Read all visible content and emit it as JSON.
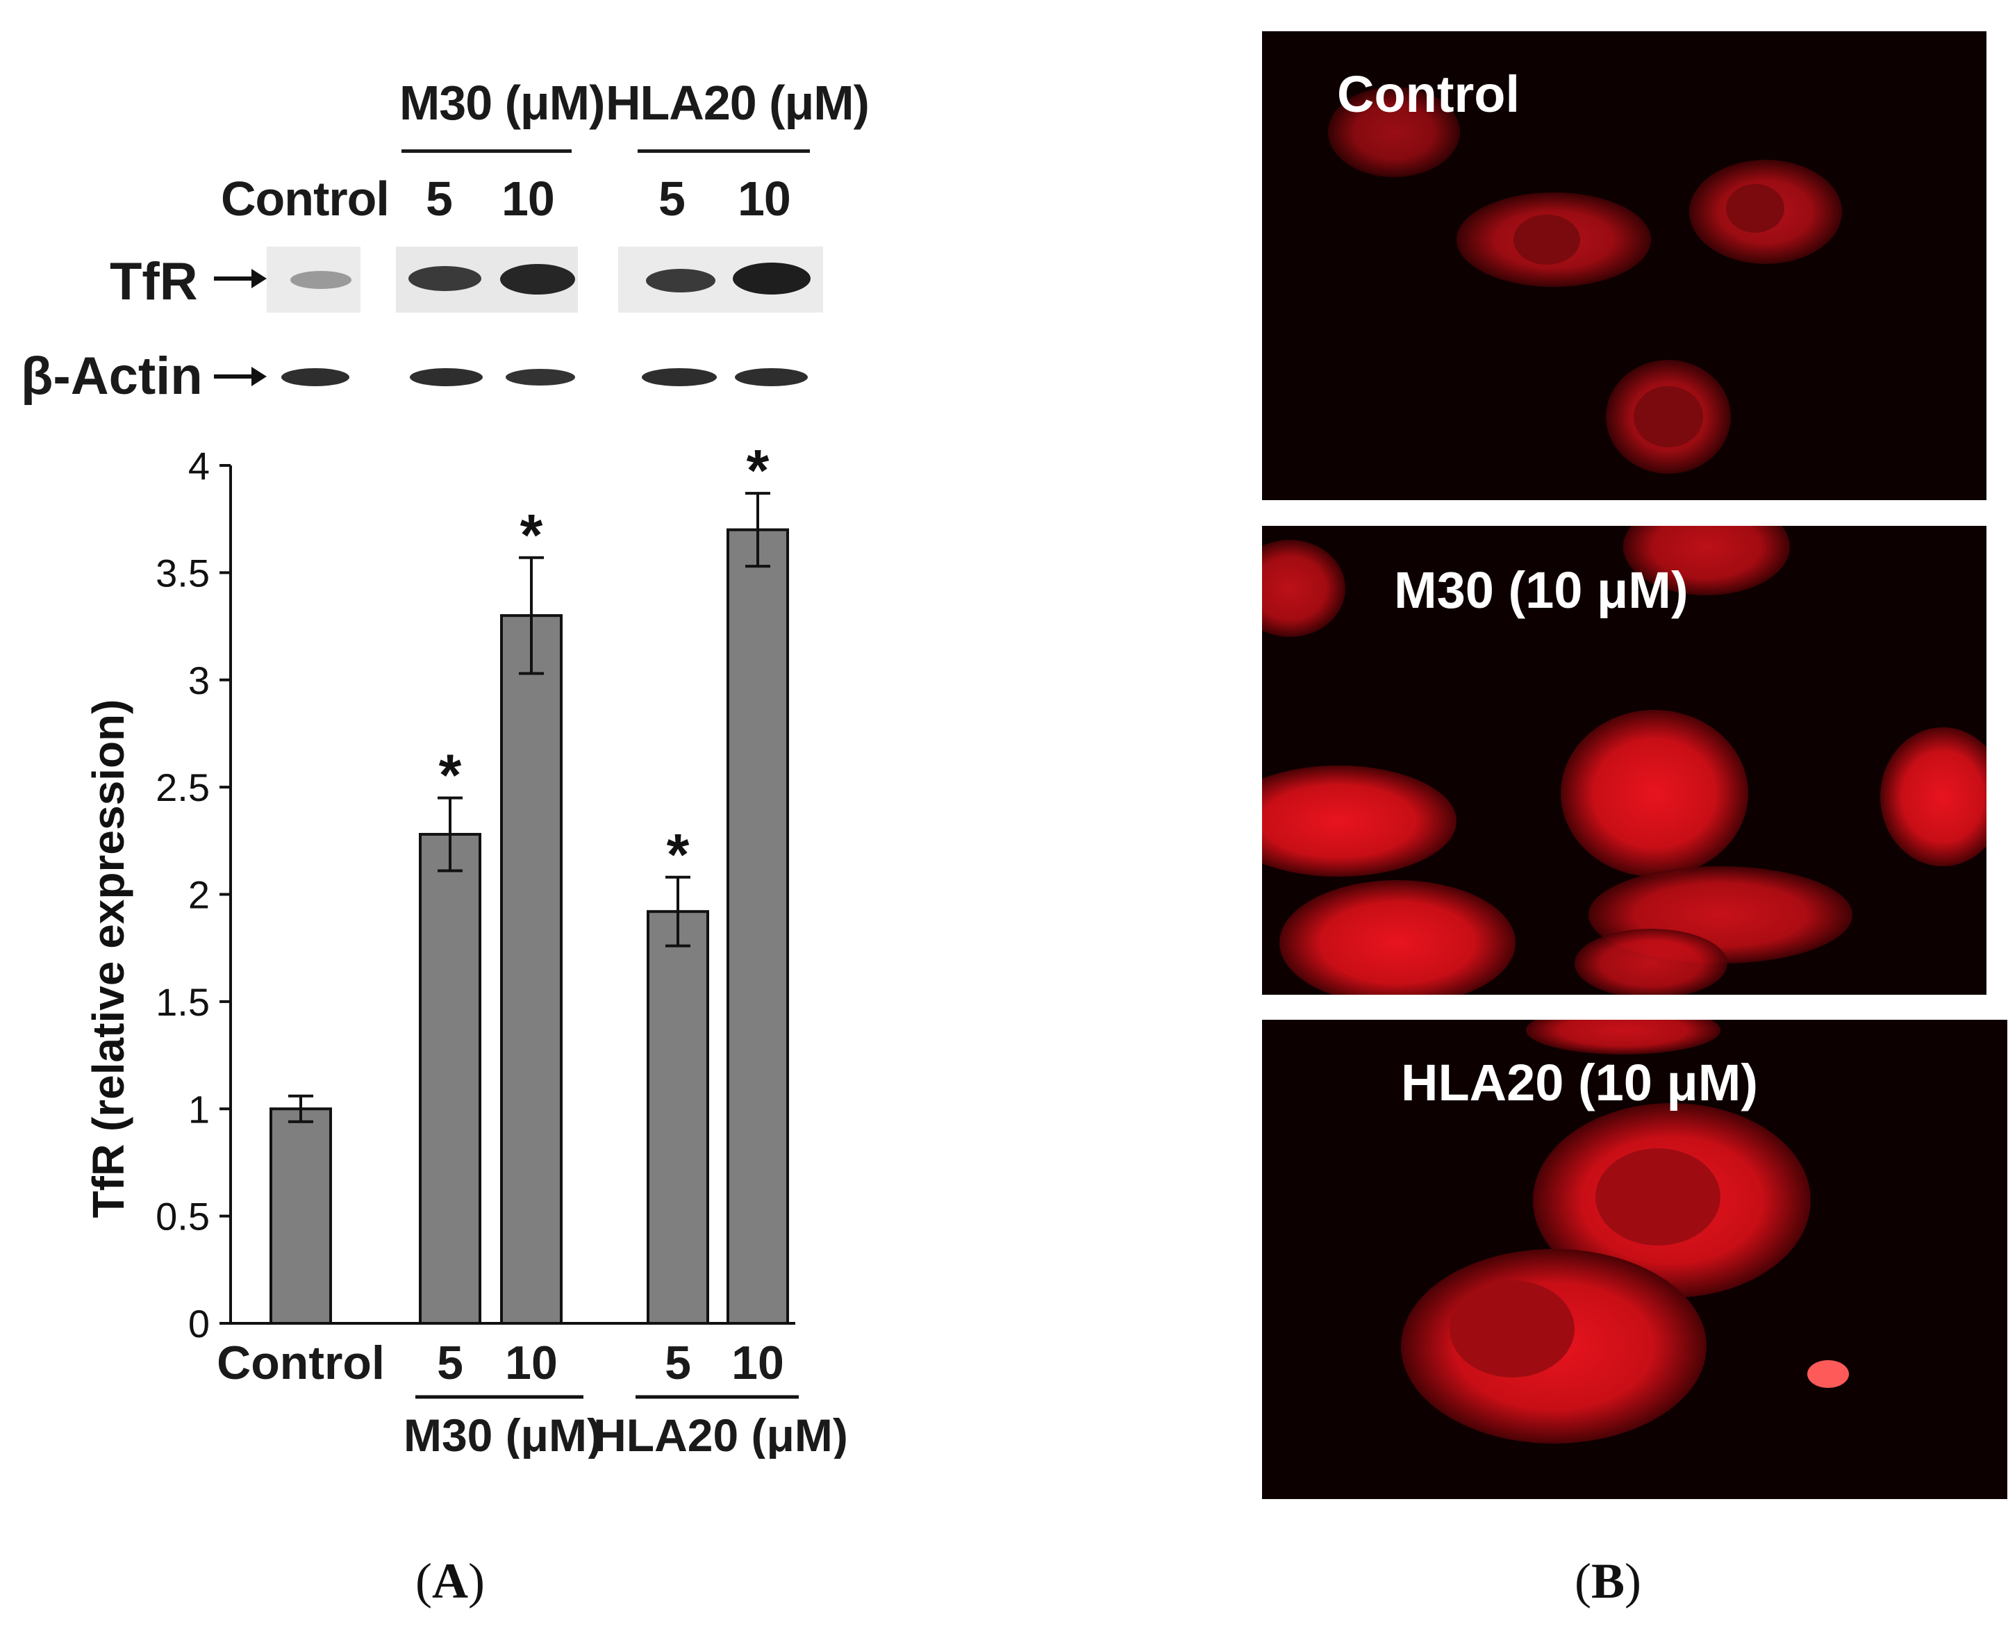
{
  "panel_a": {
    "caption_open": "(",
    "caption_letter": "A",
    "caption_close": ")",
    "blot": {
      "group1_label": "M30 (μM)",
      "group2_label": "HLA20 (μM)",
      "lane_labels": [
        "Control",
        "5",
        "10",
        "5",
        "10"
      ],
      "rows": [
        {
          "label": "TfR",
          "intensity": [
            0.35,
            0.75,
            0.85,
            0.7,
            0.9
          ]
        },
        {
          "label": "β-Actin",
          "intensity": [
            0.8,
            0.8,
            0.75,
            0.8,
            0.8
          ]
        }
      ]
    }
  },
  "panel_b": {
    "caption_open": "(",
    "caption_letter": "B",
    "caption_close": ")",
    "images": [
      {
        "label": "Control"
      },
      {
        "label": "M30 (10 μM)"
      },
      {
        "label": "HLA20 (10 μM)"
      }
    ]
  },
  "chart_data": {
    "type": "bar",
    "title": "",
    "xlabel": "",
    "ylabel": "TfR  (relative expression)",
    "ylim": [
      0,
      4
    ],
    "yticks": [
      "0",
      "0.5",
      "1",
      "1.5",
      "2",
      "2.5",
      "3",
      "3.5",
      "4"
    ],
    "categories": [
      "Control",
      "5",
      "10",
      "5",
      "10"
    ],
    "groups": [
      {
        "label": "M30 (μM)",
        "categories": [
          "5",
          "10"
        ]
      },
      {
        "label": "HLA20 (μM)",
        "categories": [
          "5",
          "10"
        ]
      }
    ],
    "values": [
      1.0,
      2.28,
      3.3,
      1.92,
      3.7
    ],
    "errors": [
      0.06,
      0.17,
      0.27,
      0.16,
      0.17
    ],
    "significance": [
      "",
      "*",
      "*",
      "*",
      "*"
    ],
    "bar_color": "#7f7f7f",
    "grid": false,
    "legend": "none"
  }
}
